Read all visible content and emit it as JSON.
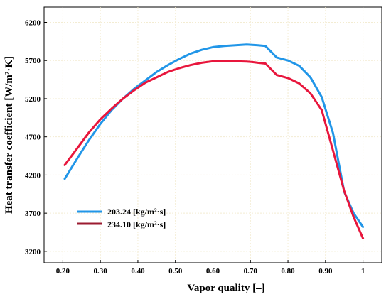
{
  "chart_data": {
    "type": "line",
    "xlabel": "Vapor quality [–]",
    "ylabel": "Heat transfer coefficient [W/m²·K]",
    "xlim": [
      0.15,
      1.05
    ],
    "ylim": [
      3050,
      6400
    ],
    "x_ticks": [
      0.2,
      0.3,
      0.4,
      0.5,
      0.6,
      0.7,
      0.8,
      0.9,
      1.0
    ],
    "x_tick_labels": [
      "0.20",
      "0.30",
      "0.40",
      "0.50",
      "0.60",
      "0.70",
      "0.80",
      "0.90",
      "1"
    ],
    "y_ticks": [
      3200,
      3700,
      4200,
      4700,
      5200,
      5700,
      6200
    ],
    "y_tick_labels": [
      "3200",
      "3700",
      "4200",
      "4700",
      "5200",
      "5700",
      "6200"
    ],
    "grid": true,
    "legend_position": "bottom-left",
    "series": [
      {
        "name": "203.24 [kg/m²·s]",
        "color": "#2196e8",
        "x": [
          0.205,
          0.24,
          0.27,
          0.3,
          0.33,
          0.36,
          0.39,
          0.42,
          0.45,
          0.48,
          0.51,
          0.54,
          0.57,
          0.6,
          0.63,
          0.66,
          0.69,
          0.705,
          0.72,
          0.74,
          0.77,
          0.8,
          0.83,
          0.86,
          0.89,
          0.92,
          0.95,
          0.975,
          1.0
        ],
        "values": [
          4150,
          4430,
          4660,
          4870,
          5050,
          5200,
          5330,
          5440,
          5550,
          5640,
          5720,
          5790,
          5840,
          5875,
          5890,
          5900,
          5910,
          5905,
          5900,
          5890,
          5740,
          5700,
          5630,
          5480,
          5220,
          4750,
          3980,
          3700,
          3520
        ]
      },
      {
        "name": "234.10 [kg/m²·s]",
        "color": "#e8163c",
        "x": [
          0.205,
          0.24,
          0.27,
          0.3,
          0.33,
          0.36,
          0.39,
          0.42,
          0.45,
          0.48,
          0.51,
          0.54,
          0.57,
          0.6,
          0.63,
          0.66,
          0.69,
          0.705,
          0.72,
          0.74,
          0.77,
          0.8,
          0.83,
          0.86,
          0.89,
          0.92,
          0.95,
          0.975,
          1.0
        ],
        "values": [
          4330,
          4560,
          4760,
          4930,
          5070,
          5200,
          5310,
          5410,
          5480,
          5550,
          5600,
          5640,
          5670,
          5690,
          5695,
          5690,
          5685,
          5680,
          5670,
          5660,
          5510,
          5470,
          5400,
          5270,
          5050,
          4520,
          3990,
          3650,
          3370
        ]
      }
    ]
  }
}
